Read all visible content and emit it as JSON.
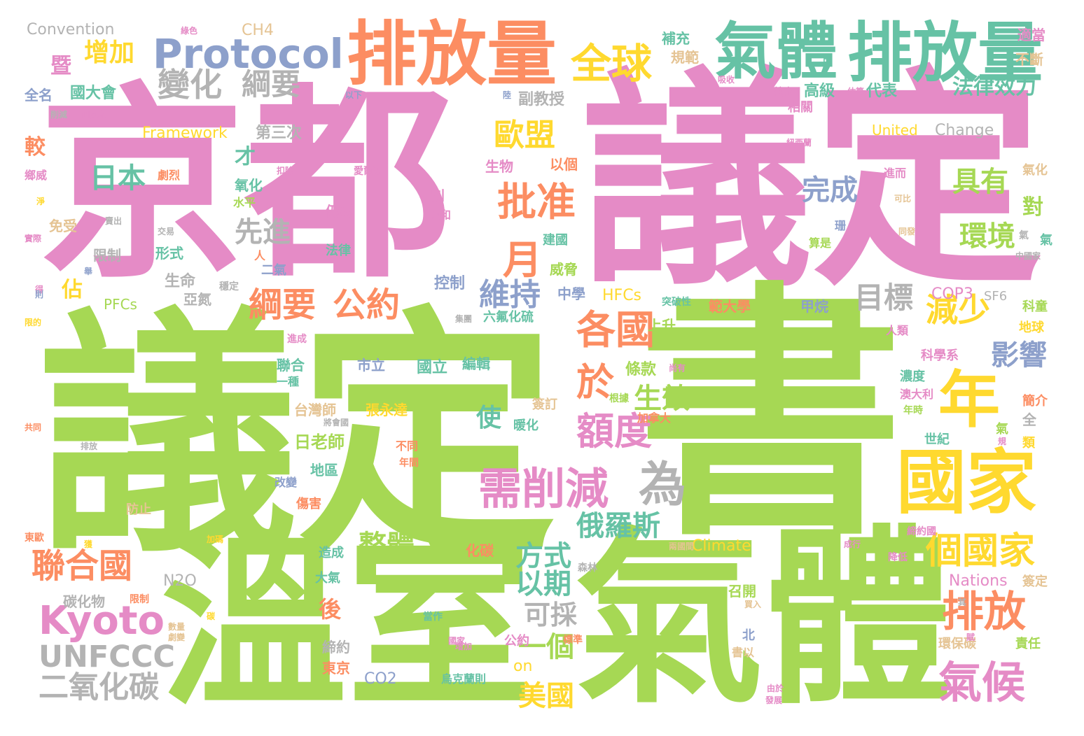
{
  "word_cloud": {
    "palette": {
      "pink": "#e58bc6",
      "green": "#a6d854",
      "orange": "#fc8d62",
      "yellow": "#ffd92f",
      "teal": "#66c2a5",
      "blue": "#8da0cb",
      "gray": "#b3b3b3",
      "tan": "#e5c494"
    },
    "words": [
      {
        "text": "京都",
        "color": "pink"
      },
      {
        "text": "議定",
        "color": "pink"
      },
      {
        "text": "議定",
        "color": "green"
      },
      {
        "text": "書",
        "color": "green"
      },
      {
        "text": "溫室",
        "color": "green"
      },
      {
        "text": "氣體",
        "color": "green"
      },
      {
        "text": "排放量",
        "color": "orange"
      },
      {
        "text": "排放量",
        "color": "teal"
      },
      {
        "text": "氣體",
        "color": "teal"
      },
      {
        "text": "Protocol",
        "color": "blue"
      },
      {
        "text": "全球",
        "color": "yellow"
      },
      {
        "text": "國家",
        "color": "yellow"
      },
      {
        "text": "年",
        "color": "yellow"
      },
      {
        "text": "需削減",
        "color": "pink"
      },
      {
        "text": "Kyoto",
        "color": "pink"
      },
      {
        "text": "聯合國",
        "color": "orange"
      },
      {
        "text": "個國家",
        "color": "yellow"
      },
      {
        "text": "排放",
        "color": "orange"
      },
      {
        "text": "氣候",
        "color": "pink"
      },
      {
        "text": "UNFCCC",
        "color": "gray"
      },
      {
        "text": "二氧化碳",
        "color": "gray"
      },
      {
        "text": "變化",
        "color": "gray"
      },
      {
        "text": "綱要",
        "color": "gray"
      },
      {
        "text": "增加",
        "color": "yellow"
      },
      {
        "text": "歐盟",
        "color": "yellow"
      },
      {
        "text": "批准",
        "color": "orange"
      },
      {
        "text": "日本",
        "color": "teal"
      },
      {
        "text": "月",
        "color": "orange"
      },
      {
        "text": "綱要",
        "color": "orange"
      },
      {
        "text": "公約",
        "color": "orange"
      },
      {
        "text": "各國",
        "color": "orange"
      },
      {
        "text": "維持",
        "color": "blue"
      },
      {
        "text": "額度",
        "color": "pink"
      },
      {
        "text": "於",
        "color": "orange"
      },
      {
        "text": "為",
        "color": "gray"
      },
      {
        "text": "減少",
        "color": "yellow"
      },
      {
        "text": "影響",
        "color": "blue"
      },
      {
        "text": "目標",
        "color": "gray"
      },
      {
        "text": "具有",
        "color": "green"
      },
      {
        "text": "環境",
        "color": "green"
      },
      {
        "text": "完成",
        "color": "blue"
      },
      {
        "text": "俄羅斯",
        "color": "teal"
      },
      {
        "text": "整體",
        "color": "green"
      },
      {
        "text": "方式",
        "color": "teal"
      },
      {
        "text": "以期",
        "color": "teal"
      },
      {
        "text": "可採",
        "color": "gray"
      },
      {
        "text": "一個",
        "color": "green"
      },
      {
        "text": "美國",
        "color": "yellow"
      },
      {
        "text": "先進",
        "color": "gray"
      },
      {
        "text": "生效",
        "color": "green"
      },
      {
        "text": "法律效力",
        "color": "teal"
      },
      {
        "text": "Convention",
        "color": "gray"
      },
      {
        "text": "CH4",
        "color": "tan"
      },
      {
        "text": "Framework",
        "color": "yellow"
      },
      {
        "text": "United",
        "color": "yellow"
      },
      {
        "text": "Change",
        "color": "gray"
      },
      {
        "text": "Climate",
        "color": "yellow"
      },
      {
        "text": "Nations",
        "color": "pink"
      },
      {
        "text": "COP3",
        "color": "pink"
      },
      {
        "text": "SF6",
        "color": "gray"
      },
      {
        "text": "HFCs",
        "color": "yellow"
      },
      {
        "text": "PFCs",
        "color": "green"
      },
      {
        "text": "N2O",
        "color": "gray"
      },
      {
        "text": "CO2",
        "color": "blue"
      },
      {
        "text": "on",
        "color": "yellow"
      },
      {
        "text": "第三次",
        "color": "gray"
      },
      {
        "text": "副教授",
        "color": "gray"
      },
      {
        "text": "高級",
        "color": "teal"
      },
      {
        "text": "代表",
        "color": "teal"
      },
      {
        "text": "國大會",
        "color": "teal"
      },
      {
        "text": "全名",
        "color": "blue"
      },
      {
        "text": "規範",
        "color": "tan"
      },
      {
        "text": "補充",
        "color": "teal"
      },
      {
        "text": "適當",
        "color": "pink"
      },
      {
        "text": "不斷",
        "color": "tan"
      },
      {
        "text": "才",
        "color": "teal"
      },
      {
        "text": "較",
        "color": "orange"
      },
      {
        "text": "對",
        "color": "green"
      },
      {
        "text": "使",
        "color": "teal"
      },
      {
        "text": "後",
        "color": "orange"
      },
      {
        "text": "佔",
        "color": "yellow"
      },
      {
        "text": "暨",
        "color": "pink"
      },
      {
        "text": "日老師",
        "color": "green"
      },
      {
        "text": "台灣師",
        "color": "tan"
      },
      {
        "text": "張永達",
        "color": "yellow"
      },
      {
        "text": "國立",
        "color": "teal"
      },
      {
        "text": "編輯",
        "color": "teal"
      },
      {
        "text": "市立",
        "color": "blue"
      },
      {
        "text": "聯合",
        "color": "teal"
      },
      {
        "text": "地區",
        "color": "teal"
      },
      {
        "text": "條款",
        "color": "green"
      },
      {
        "text": "上升",
        "color": "green"
      },
      {
        "text": "六氟化硫",
        "color": "teal"
      },
      {
        "text": "範大學",
        "color": "orange"
      },
      {
        "text": "甲烷",
        "color": "blue"
      },
      {
        "text": "中學",
        "color": "blue"
      },
      {
        "text": "威脅",
        "color": "green"
      },
      {
        "text": "控制",
        "color": "blue"
      },
      {
        "text": "生命",
        "color": "gray"
      },
      {
        "text": "亞氮",
        "color": "gray"
      },
      {
        "text": "氧化",
        "color": "teal"
      },
      {
        "text": "水平",
        "color": "green"
      },
      {
        "text": "生物",
        "color": "pink"
      },
      {
        "text": "以個",
        "color": "orange"
      },
      {
        "text": "仍然",
        "color": "pink"
      },
      {
        "text": "法律",
        "color": "teal"
      },
      {
        "text": "建國",
        "color": "teal"
      },
      {
        "text": "限制",
        "color": "gray"
      },
      {
        "text": "形式",
        "color": "teal"
      },
      {
        "text": "免受",
        "color": "tan"
      },
      {
        "text": "二氣",
        "color": "blue"
      },
      {
        "text": "化碳",
        "color": "orange"
      },
      {
        "text": "造成",
        "color": "teal"
      },
      {
        "text": "大氣",
        "color": "teal"
      },
      {
        "text": "締約",
        "color": "gray"
      },
      {
        "text": "東京",
        "color": "orange"
      },
      {
        "text": "碳化物",
        "color": "gray"
      },
      {
        "text": "公約",
        "color": "pink"
      },
      {
        "text": "簽訂",
        "color": "tan"
      },
      {
        "text": "暖化",
        "color": "teal"
      },
      {
        "text": "召開",
        "color": "green"
      },
      {
        "text": "北",
        "color": "blue"
      },
      {
        "text": "書以",
        "color": "tan"
      },
      {
        "text": "世紀",
        "color": "teal"
      },
      {
        "text": "濃度",
        "color": "teal"
      },
      {
        "text": "科學系",
        "color": "pink"
      },
      {
        "text": "地球",
        "color": "yellow"
      },
      {
        "text": "科童",
        "color": "green"
      },
      {
        "text": "簡介",
        "color": "orange"
      },
      {
        "text": "環保碳",
        "color": "tan"
      },
      {
        "text": "責任",
        "color": "green"
      },
      {
        "text": "簽定",
        "color": "tan"
      },
      {
        "text": "相關",
        "color": "pink"
      },
      {
        "text": "進而",
        "color": "pink"
      },
      {
        "text": "氣化",
        "color": "tan"
      },
      {
        "text": "算是",
        "color": "green"
      },
      {
        "text": "氣",
        "color": "teal"
      },
      {
        "text": "中",
        "color": "teal"
      },
      {
        "text": "防止",
        "color": "tan"
      },
      {
        "text": "傷害",
        "color": "orange"
      },
      {
        "text": "改變",
        "color": "blue"
      },
      {
        "text": "一種",
        "color": "teal"
      },
      {
        "text": "別",
        "color": "pink"
      },
      {
        "text": "亞和",
        "color": "pink"
      },
      {
        "text": "珊",
        "color": "blue"
      },
      {
        "text": "人類",
        "color": "pink"
      },
      {
        "text": "澳大利",
        "color": "pink"
      },
      {
        "text": "加拿大",
        "color": "orange"
      },
      {
        "text": "根據",
        "color": "green"
      },
      {
        "text": "年時",
        "color": "green"
      },
      {
        "text": "年間",
        "color": "orange"
      },
      {
        "text": "不同",
        "color": "orange"
      },
      {
        "text": "降低",
        "color": "pink"
      },
      {
        "text": "締約國",
        "color": "pink"
      },
      {
        "text": "森林",
        "color": "gray"
      },
      {
        "text": "當作",
        "color": "teal"
      },
      {
        "text": "標準",
        "color": "orange"
      },
      {
        "text": "烏克蘭則",
        "color": "teal"
      },
      {
        "text": "由於",
        "color": "pink"
      },
      {
        "text": "發展",
        "color": "pink"
      },
      {
        "text": "鄉威",
        "color": "pink"
      },
      {
        "text": "劇烈",
        "color": "orange"
      },
      {
        "text": "扣除",
        "color": "pink"
      },
      {
        "text": "愛爾蘭",
        "color": "pink"
      },
      {
        "text": "紐西蘭",
        "color": "pink"
      },
      {
        "text": "估算",
        "color": "pink"
      },
      {
        "text": "較少",
        "color": "pink"
      },
      {
        "text": "吸收",
        "color": "pink"
      },
      {
        "text": "可比",
        "color": "tan"
      },
      {
        "text": "同發",
        "color": "tan"
      },
      {
        "text": "中國家",
        "color": "gray"
      },
      {
        "text": "東歐",
        "color": "orange"
      },
      {
        "text": "排放",
        "color": "gray"
      },
      {
        "text": "共同",
        "color": "orange"
      },
      {
        "text": "得",
        "color": "pink"
      },
      {
        "text": "以下",
        "color": "blue"
      },
      {
        "text": "交易",
        "color": "gray"
      },
      {
        "text": "賣出",
        "color": "gray"
      },
      {
        "text": "買入",
        "color": "tan"
      },
      {
        "text": "實際",
        "color": "pink"
      },
      {
        "text": "人",
        "color": "orange"
      },
      {
        "text": "穩定",
        "color": "gray"
      },
      {
        "text": "氣",
        "color": "green"
      },
      {
        "text": "全",
        "color": "gray"
      },
      {
        "text": "綠色",
        "color": "pink"
      },
      {
        "text": "將會國",
        "color": "gray"
      },
      {
        "text": "兩國間",
        "color": "tan"
      },
      {
        "text": "集團",
        "color": "gray"
      },
      {
        "text": "突破性",
        "color": "teal"
      },
      {
        "text": "尚有",
        "color": "pink"
      },
      {
        "text": "進成",
        "color": "pink"
      },
      {
        "text": "削減",
        "color": "gray"
      },
      {
        "text": "個國家",
        "color": "pink"
      },
      {
        "text": "淨",
        "color": "yellow"
      },
      {
        "text": "陸",
        "color": "blue"
      },
      {
        "text": "舉",
        "color": "blue"
      },
      {
        "text": "則",
        "color": "blue"
      },
      {
        "text": "限的",
        "color": "yellow"
      },
      {
        "text": "加碼",
        "color": "yellow"
      },
      {
        "text": "獲",
        "color": "yellow"
      },
      {
        "text": "限制",
        "color": "orange"
      },
      {
        "text": "數量",
        "color": "tan"
      },
      {
        "text": "碳",
        "color": "yellow"
      },
      {
        "text": "劇變",
        "color": "tan"
      },
      {
        "text": "增加",
        "color": "pink"
      },
      {
        "text": "成行",
        "color": "pink"
      },
      {
        "text": "規",
        "color": "pink"
      },
      {
        "text": "類",
        "color": "gray"
      },
      {
        "text": "氣",
        "color": "gray"
      },
      {
        "text": "其",
        "color": "gray"
      },
      {
        "text": "賦",
        "color": "pink"
      },
      {
        "text": "國家",
        "color": "pink"
      }
    ]
  }
}
